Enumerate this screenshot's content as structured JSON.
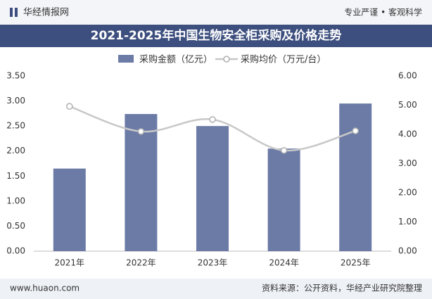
{
  "header": {
    "brand": "华经情报网",
    "slogan": "专业严谨 • 客观科学"
  },
  "chart_data": {
    "type": "bar",
    "title": "2021-2025年中国生物安全柜采购及价格走势",
    "categories": [
      "2021年",
      "2022年",
      "2023年",
      "2024年",
      "2025年"
    ],
    "series": [
      {
        "name": "采购金额（亿元）",
        "type": "bar",
        "color": "#6b7ba6",
        "values": [
          1.65,
          2.74,
          2.5,
          2.05,
          2.95
        ]
      },
      {
        "name": "采购均价（万元/台）",
        "type": "line",
        "axis": "y2",
        "color": "#c8c8c8",
        "values": [
          4.96,
          4.1,
          4.51,
          3.45,
          4.12
        ]
      }
    ],
    "ylim": [
      0,
      3.5
    ],
    "yticks": [
      {
        "value": 0,
        "label": "0.00"
      },
      {
        "value": 0.5,
        "label": "0.50"
      },
      {
        "value": 1,
        "label": "1.00"
      },
      {
        "value": 1.5,
        "label": "1.50"
      },
      {
        "value": 2,
        "label": "2.00"
      },
      {
        "value": 2.5,
        "label": "2.50"
      },
      {
        "value": 3,
        "label": "3.00"
      },
      {
        "value": 3.5,
        "label": "3.50"
      }
    ],
    "y2lim": [
      0,
      6
    ],
    "y2ticks": [
      {
        "value": 0,
        "label": "0.00"
      },
      {
        "value": 1,
        "label": "1.00"
      },
      {
        "value": 2,
        "label": "2.00"
      },
      {
        "value": 3,
        "label": "3.00"
      },
      {
        "value": 4,
        "label": "4.00"
      },
      {
        "value": 5,
        "label": "5.00"
      },
      {
        "value": 6,
        "label": "6.00"
      }
    ]
  },
  "footer": {
    "url": "www.huaon.com",
    "source": "资料来源：公开资料，华经产业研究院整理"
  }
}
